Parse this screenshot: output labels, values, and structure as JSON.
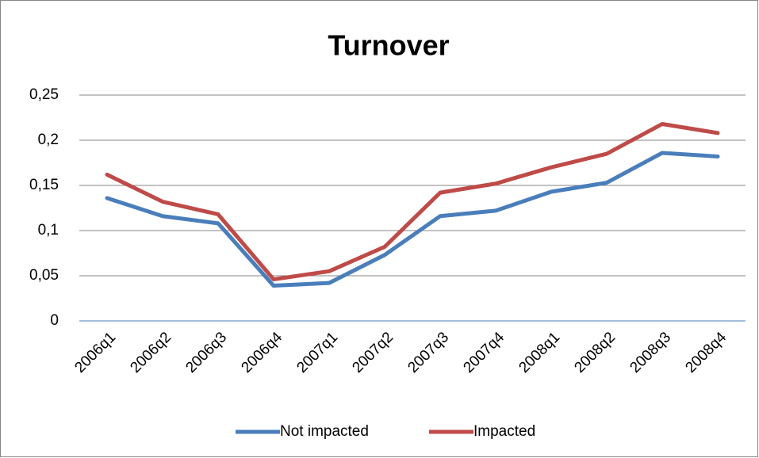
{
  "chart_data": {
    "type": "line",
    "title": "Turnover",
    "categories": [
      "2006q1",
      "2006q2",
      "2006q3",
      "2006q4",
      "2007q1",
      "2007q2",
      "2007q3",
      "2007q4",
      "2008q1",
      "2008q2",
      "2008q3",
      "2008q4"
    ],
    "series": [
      {
        "name": "Not impacted",
        "color": "#4a7ebb",
        "values": [
          0.136,
          0.116,
          0.108,
          0.039,
          0.042,
          0.073,
          0.116,
          0.122,
          0.143,
          0.153,
          0.186,
          0.182
        ]
      },
      {
        "name": "Impacted",
        "color": "#be4b48",
        "values": [
          0.162,
          0.132,
          0.118,
          0.046,
          0.055,
          0.082,
          0.142,
          0.152,
          0.17,
          0.185,
          0.218,
          0.208
        ]
      }
    ],
    "ylim": [
      0,
      0.25
    ],
    "yticks": [
      0,
      {
        "value": 0.05,
        "label": "0,05"
      },
      {
        "value": 0.1,
        "label": "0,1"
      },
      {
        "value": 0.15,
        "label": "0,15"
      },
      {
        "value": 0.2,
        "label": "0,2"
      },
      {
        "value": 0.25,
        "label": "0,25"
      }
    ],
    "grid": true,
    "legend": "bottom"
  }
}
